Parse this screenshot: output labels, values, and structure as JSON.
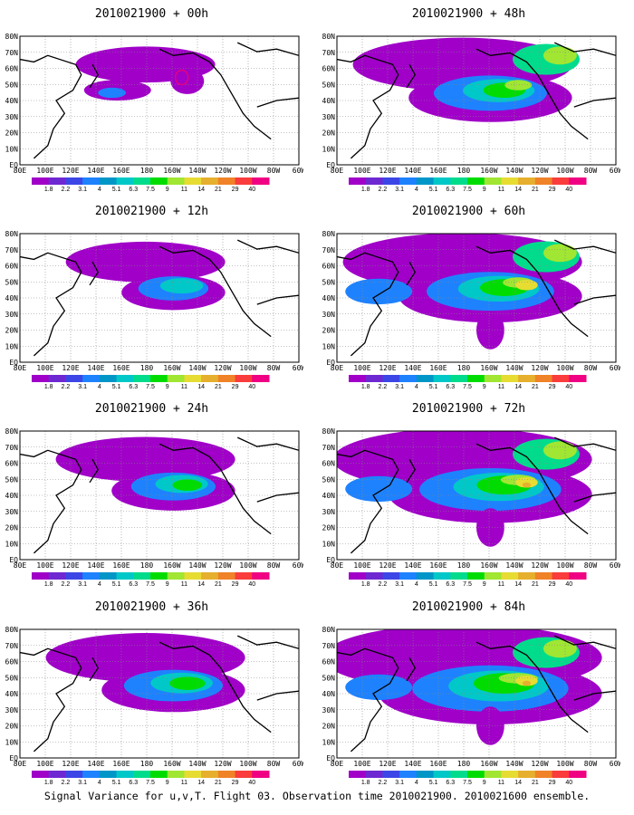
{
  "figure": {
    "caption": "Signal Variance for u,v,T. Flight 03. Observation time 2010021900. 2010021600 ensemble."
  },
  "panels": [
    {
      "title": "2010021900 + 00h",
      "lead_hours": 0
    },
    {
      "title": "2010021900 + 48h",
      "lead_hours": 48
    },
    {
      "title": "2010021900 + 12h",
      "lead_hours": 12
    },
    {
      "title": "2010021900 + 60h",
      "lead_hours": 60
    },
    {
      "title": "2010021900 + 24h",
      "lead_hours": 24
    },
    {
      "title": "2010021900 + 72h",
      "lead_hours": 72
    },
    {
      "title": "2010021900 + 36h",
      "lead_hours": 36
    },
    {
      "title": "2010021900 + 84h",
      "lead_hours": 84
    }
  ],
  "map": {
    "lon_labels": [
      "80E",
      "100E",
      "120E",
      "140E",
      "160E",
      "180",
      "160W",
      "140W",
      "120W",
      "100W",
      "80W",
      "60W"
    ],
    "lat_labels": [
      "EQ",
      "10N",
      "20N",
      "30N",
      "40N",
      "50N",
      "60N",
      "70N",
      "80N"
    ],
    "lon_range": [
      "80E",
      "60W"
    ],
    "lat_range": [
      "EQ",
      "80N"
    ],
    "grid": true,
    "gridline_style": "dotted"
  },
  "colorbar": {
    "labels": [
      "1.8",
      "2.2",
      "3.1",
      "4",
      "5.1",
      "6.3",
      "7.5",
      "9",
      "11",
      "14",
      "21",
      "29",
      "40"
    ],
    "colors": [
      "#a000c8",
      "#6e28d2",
      "#3c46e6",
      "#1e82ff",
      "#0096c8",
      "#00c8c8",
      "#00dc8c",
      "#00dc00",
      "#a0e632",
      "#e6dc32",
      "#e6af2d",
      "#f08228",
      "#fa3c3c",
      "#f00082"
    ],
    "colors_note": "14 color intervals separated by 13 level labels"
  }
}
